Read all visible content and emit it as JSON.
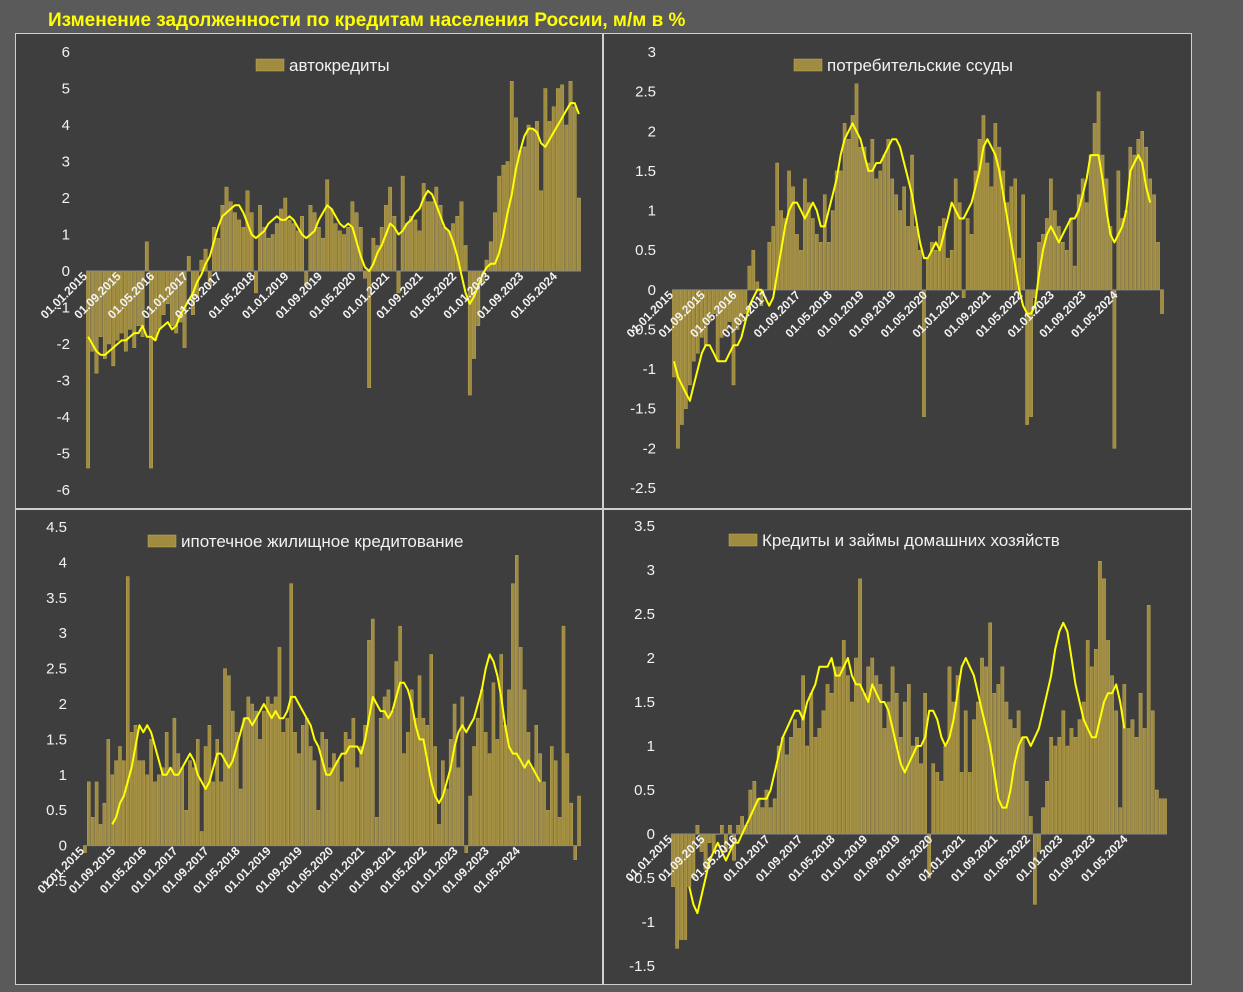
{
  "title": "Изменение задолженности по кредитам населения России, м/м в %",
  "colors": {
    "background": "#5a5a5a",
    "plot_area": "#3e3e3e",
    "bars": "#a08c40",
    "bar_stroke": "#c6b05a",
    "trend_line": "#ffff00",
    "text": "#f2f2f2",
    "panel_border": "#cfcfcf"
  },
  "chart_data": [
    {
      "type": "bar",
      "legend": "автокредиты",
      "legend_position": "top-center",
      "ylim": [
        -6,
        6
      ],
      "yticks": [
        -6,
        -5,
        -4,
        -3,
        -2,
        -1,
        0,
        1,
        2,
        3,
        4,
        5,
        6
      ],
      "x_tick_labels": [
        "01.01.2015",
        "01.09.2015",
        "01.05.2016",
        "01.01.2017",
        "01.09.2017",
        "01.05.2018",
        "01.01.2019",
        "01.09.2019",
        "01.05.2020",
        "01.01.2021",
        "01.09.2021",
        "01.05.2022",
        "01.01.2023",
        "01.09.2023",
        "01.05.2024"
      ],
      "start_month": "2015-01",
      "values": [
        -5.4,
        -2.2,
        -2.8,
        -1.8,
        -2.4,
        -2.0,
        -2.6,
        -1.9,
        -1.7,
        -2.2,
        -1.6,
        -2.1,
        -1.5,
        -1.8,
        0.8,
        -5.4,
        -1.9,
        -1.6,
        -1.2,
        -0.9,
        -1.5,
        -1.7,
        -1.4,
        -2.1,
        0.4,
        -1.2,
        -0.7,
        0.3,
        0.6,
        -0.4,
        1.2,
        0.9,
        1.8,
        2.3,
        1.9,
        1.6,
        1.4,
        1.2,
        2.2,
        1.6,
        -0.6,
        1.8,
        1.2,
        0.9,
        1.0,
        1.3,
        1.7,
        2.0,
        1.4,
        1.3,
        1.1,
        1.5,
        -0.4,
        1.8,
        1.6,
        1.2,
        0.9,
        2.5,
        1.7,
        1.3,
        1.1,
        1.0,
        1.2,
        1.9,
        1.6,
        1.2,
        -0.2,
        -3.2,
        0.9,
        0.7,
        1.2,
        1.8,
        2.3,
        1.5,
        -0.6,
        2.6,
        1.3,
        1.5,
        1.4,
        1.1,
        2.4,
        1.9,
        1.9,
        2.3,
        1.8,
        1.2,
        1.1,
        1.3,
        1.5,
        1.9,
        0.7,
        -3.4,
        -2.4,
        -1.5,
        -0.3,
        0.3,
        0.8,
        1.6,
        2.6,
        2.9,
        3.0,
        5.2,
        4.2,
        3.3,
        3.4,
        4.0,
        3.9,
        4.1,
        2.2,
        5.0,
        4.1,
        4.5,
        5.0,
        5.1,
        4.0,
        5.2,
        4.5,
        2.0
      ],
      "trend": [
        -1.8,
        -2.0,
        -2.2,
        -2.3,
        -2.3,
        -2.2,
        -2.1,
        -2.0,
        -1.9,
        -1.9,
        -1.8,
        -1.7,
        -1.7,
        -1.5,
        -1.8,
        -1.8,
        -1.9,
        -1.6,
        -1.5,
        -1.4,
        -1.6,
        -1.5,
        -1.2,
        -1.0,
        -0.8,
        -0.6,
        -0.3,
        -0.1,
        0.2,
        0.4,
        0.8,
        1.2,
        1.5,
        1.6,
        1.7,
        1.8,
        1.8,
        1.6,
        1.3,
        1.0,
        0.9,
        1.0,
        1.1,
        1.3,
        1.4,
        1.5,
        1.4,
        1.4,
        1.5,
        1.4,
        1.2,
        1.0,
        0.9,
        1.0,
        1.1,
        1.4,
        1.6,
        1.8,
        1.7,
        1.5,
        1.3,
        1.2,
        1.3,
        1.2,
        0.8,
        0.4,
        0.1,
        0.0,
        0.2,
        0.5,
        0.7,
        1.0,
        1.3,
        1.2,
        1.0,
        1.1,
        1.3,
        1.4,
        1.6,
        1.7,
        2.0,
        2.2,
        2.1,
        1.8,
        1.5,
        1.2,
        1.1,
        0.8,
        0.4,
        -0.1,
        -0.6,
        -0.9,
        -0.7,
        -0.4,
        -0.1,
        0.1,
        0.2,
        0.2,
        0.5,
        1.0,
        1.6,
        2.1,
        2.8,
        3.3,
        3.7,
        3.9,
        3.9,
        3.8,
        3.5,
        3.4,
        3.6,
        3.8,
        4.0,
        4.2,
        4.4,
        4.6,
        4.6,
        4.3
      ]
    },
    {
      "type": "bar",
      "legend": "потребительские ссуды",
      "legend_position": "top-center",
      "ylim": [
        -2.5,
        3
      ],
      "yticks": [
        -2.5,
        -2,
        -1.5,
        -1,
        -0.5,
        0,
        0.5,
        1,
        1.5,
        2,
        2.5,
        3
      ],
      "x_tick_labels": [
        "01.01.2015",
        "01.09.2015",
        "01.05.2016",
        "01.01.2017",
        "01.09.2017",
        "01.05.2018",
        "01.01.2019",
        "01.09.2019",
        "01.05.2020",
        "01.01.2021",
        "01.09.2021",
        "01.05.2022",
        "01.01.2023",
        "01.09.2023",
        "01.05.2024"
      ],
      "start_month": "2015-01",
      "values": [
        -1.1,
        -2.0,
        -1.7,
        -1.5,
        -1.2,
        -0.9,
        -0.8,
        -0.6,
        -0.7,
        -0.4,
        -0.3,
        -0.9,
        -0.6,
        -0.5,
        -0.4,
        -1.2,
        -0.5,
        -0.4,
        -0.3,
        0.3,
        0.5,
        0.1,
        -0.2,
        0.0,
        0.6,
        0.8,
        1.6,
        1.0,
        0.9,
        1.5,
        1.3,
        0.7,
        0.5,
        1.4,
        1.1,
        0.9,
        0.7,
        0.6,
        1.2,
        0.6,
        1.0,
        1.5,
        1.5,
        2.1,
        1.9,
        2.2,
        2.6,
        1.8,
        1.8,
        1.6,
        1.9,
        1.4,
        1.5,
        1.7,
        1.9,
        1.4,
        1.2,
        1.0,
        1.3,
        0.8,
        1.7,
        0.8,
        0.5,
        -1.6,
        0.4,
        0.6,
        0.5,
        0.8,
        0.9,
        0.4,
        0.5,
        1.4,
        1.1,
        -0.1,
        0.9,
        0.7,
        1.5,
        1.9,
        2.2,
        1.6,
        1.3,
        2.1,
        1.8,
        1.5,
        1.1,
        1.3,
        1.4,
        0.4,
        1.2,
        -1.7,
        -1.6,
        -0.1,
        0.6,
        0.7,
        0.9,
        1.4,
        1.0,
        0.8,
        0.6,
        0.5,
        0.9,
        0.3,
        1.2,
        1.4,
        1.1,
        1.7,
        2.1,
        2.5,
        1.7,
        1.4,
        0.8,
        -2.0,
        1.5,
        0.9,
        1.0,
        1.8,
        1.7,
        1.9,
        2.0,
        1.8,
        1.4,
        1.2,
        0.6,
        -0.3
      ],
      "trend": [
        -0.9,
        -1.1,
        -1.2,
        -1.3,
        -1.4,
        -1.2,
        -1.0,
        -0.8,
        -0.7,
        -0.7,
        -0.8,
        -0.9,
        -0.9,
        -0.9,
        -0.8,
        -0.7,
        -0.7,
        -0.6,
        -0.4,
        -0.2,
        -0.1,
        0.0,
        0.0,
        -0.1,
        -0.2,
        -0.1,
        0.2,
        0.5,
        0.8,
        1.0,
        1.1,
        1.1,
        1.0,
        0.9,
        1.0,
        1.1,
        1.0,
        0.8,
        0.8,
        1.0,
        1.2,
        1.4,
        1.7,
        1.9,
        2.0,
        2.1,
        2.0,
        1.9,
        1.7,
        1.5,
        1.5,
        1.6,
        1.6,
        1.7,
        1.8,
        1.9,
        1.9,
        1.8,
        1.6,
        1.4,
        1.2,
        0.9,
        0.6,
        0.4,
        0.4,
        0.5,
        0.6,
        0.5,
        0.7,
        0.9,
        1.1,
        1.0,
        0.9,
        0.9,
        1.0,
        1.1,
        1.3,
        1.5,
        1.8,
        1.9,
        1.8,
        1.7,
        1.5,
        1.2,
        0.9,
        0.6,
        0.3,
        0.0,
        -0.2,
        -0.3,
        -0.3,
        -0.2,
        0.2,
        0.5,
        0.7,
        0.8,
        0.7,
        0.6,
        0.7,
        0.8,
        0.9,
        0.9,
        1.0,
        1.2,
        1.4,
        1.7,
        1.7,
        1.7,
        1.4,
        1.0,
        0.7,
        0.6,
        0.7,
        0.8,
        1.0,
        1.5,
        1.6,
        1.7,
        1.6,
        1.3,
        1.1
      ],
      "trend_offset": 0
    },
    {
      "type": "bar",
      "legend": "ипотечное жилищное кредитование",
      "legend_position": "top-center",
      "ylim": [
        -0.5,
        4.5
      ],
      "yticks": [
        -0.5,
        0,
        0.5,
        1,
        1.5,
        2,
        2.5,
        3,
        3.5,
        4,
        4.5
      ],
      "x_tick_labels": [
        "01.01.2015",
        "01.09.2015",
        "01.05.2016",
        "01.01.2017",
        "01.09.2017",
        "01.05.2018",
        "01.01.2019",
        "01.09.2019",
        "01.05.2020",
        "01.01.2021",
        "01.09.2021",
        "01.05.2022",
        "01.01.2023",
        "01.09.2023",
        "01.05.2024"
      ],
      "start_month": "2015-01",
      "values": [
        -0.1,
        0.9,
        0.4,
        0.9,
        0.3,
        0.6,
        1.5,
        1.0,
        1.2,
        1.4,
        1.2,
        3.8,
        1.6,
        1.7,
        1.2,
        1.2,
        1.0,
        1.5,
        0.9,
        1.0,
        1.1,
        1.6,
        1.1,
        1.8,
        1.3,
        1.1,
        0.5,
        1.2,
        1.1,
        1.5,
        0.2,
        1.4,
        1.7,
        0.9,
        1.5,
        0.9,
        2.5,
        2.4,
        1.9,
        1.6,
        0.8,
        1.8,
        2.1,
        2.0,
        1.9,
        1.5,
        1.9,
        2.1,
        2.0,
        2.1,
        2.8,
        1.6,
        1.8,
        3.7,
        1.6,
        1.3,
        1.7,
        1.8,
        1.4,
        1.2,
        0.5,
        1.6,
        1.5,
        1.1,
        1.3,
        1.2,
        0.9,
        1.6,
        1.5,
        1.8,
        1.1,
        1.4,
        1.7,
        2.9,
        3.2,
        0.4,
        1.8,
        2.1,
        2.2,
        1.9,
        2.6,
        3.1,
        1.3,
        1.6,
        2.2,
        1.8,
        2.4,
        1.8,
        1.7,
        2.7,
        1.4,
        0.3,
        1.2,
        0.8,
        1.5,
        2.0,
        1.1,
        2.1,
        -0.1,
        0.7,
        1.4,
        1.8,
        2.2,
        1.6,
        1.3,
        2.3,
        1.5,
        2.7,
        1.7,
        2.2,
        3.7,
        4.1,
        2.8,
        2.2,
        1.6,
        1.1,
        1.7,
        1.3,
        0.9,
        0.5,
        1.4,
        1.2,
        0.4,
        3.1,
        1.3,
        0.6,
        -0.2,
        0.7
      ],
      "trend_start": 7,
      "trend": [
        0.3,
        0.4,
        0.6,
        0.7,
        0.9,
        1.1,
        1.4,
        1.7,
        1.6,
        1.7,
        1.6,
        1.4,
        1.2,
        1.0,
        1.0,
        1.1,
        1.0,
        1.0,
        1.1,
        1.2,
        1.3,
        1.2,
        1.0,
        0.9,
        0.8,
        0.9,
        1.1,
        1.3,
        1.3,
        1.2,
        1.1,
        1.2,
        1.4,
        1.6,
        1.8,
        1.8,
        1.7,
        1.8,
        1.9,
        2.0,
        1.9,
        1.8,
        1.9,
        1.8,
        1.8,
        1.9,
        2.1,
        2.1,
        2.0,
        1.9,
        1.8,
        1.7,
        1.5,
        1.4,
        1.2,
        1.0,
        1.0,
        1.1,
        1.2,
        1.3,
        1.3,
        1.4,
        1.4,
        1.4,
        1.3,
        1.5,
        1.8,
        2.1,
        2.0,
        1.9,
        1.9,
        1.8,
        1.9,
        2.1,
        2.3,
        2.3,
        2.2,
        2.0,
        1.7,
        1.5,
        1.5,
        1.2,
        0.9,
        0.7,
        0.6,
        0.7,
        0.9,
        1.1,
        1.4,
        1.6,
        1.7,
        1.6,
        1.7,
        1.8,
        2.0,
        2.2,
        2.5,
        2.7,
        2.6,
        2.4,
        2.1,
        1.7,
        1.4,
        1.3,
        1.3,
        1.2,
        1.1,
        1.2,
        1.1,
        1.0,
        0.9
      ]
    },
    {
      "type": "bar",
      "legend": "Кредиты и займы домашних хозяйств",
      "legend_position": "top-center",
      "ylim": [
        -1.5,
        3.5
      ],
      "yticks": [
        -1.5,
        -1,
        -0.5,
        0,
        0.5,
        1,
        1.5,
        2,
        2.5,
        3,
        3.5
      ],
      "x_tick_labels": [
        "01.01.2015",
        "01.09.2015",
        "01.05.2016",
        "01.01.2017",
        "01.09.2017",
        "01.05.2018",
        "01.01.2019",
        "01.09.2019",
        "01.05.2020",
        "01.01.2021",
        "01.09.2021",
        "01.05.2022",
        "01.01.2023",
        "01.09.2023",
        "01.05.2024"
      ],
      "start_month": "2015-01",
      "values": [
        -0.6,
        -1.3,
        -1.2,
        -1.2,
        -0.6,
        -0.5,
        0.1,
        -0.2,
        -0.4,
        -0.1,
        -0.2,
        0.0,
        0.1,
        -0.2,
        0.1,
        -0.3,
        0.1,
        0.2,
        0.1,
        0.5,
        0.6,
        0.4,
        0.3,
        0.5,
        0.3,
        0.4,
        1.0,
        1.1,
        0.9,
        1.1,
        1.3,
        1.2,
        1.8,
        1.0,
        1.6,
        1.1,
        1.2,
        1.4,
        1.7,
        1.6,
        1.9,
        1.9,
        2.2,
        1.8,
        1.5,
        2.0,
        2.9,
        1.6,
        1.9,
        2.0,
        1.8,
        1.7,
        1.2,
        1.5,
        1.9,
        1.6,
        1.1,
        1.5,
        1.7,
        1.0,
        1.1,
        0.8,
        1.6,
        -0.5,
        0.8,
        0.7,
        0.6,
        1.0,
        1.9,
        1.5,
        1.8,
        0.7,
        1.4,
        0.7,
        1.3,
        1.5,
        2.0,
        1.9,
        2.4,
        1.6,
        1.7,
        1.9,
        1.5,
        1.3,
        1.2,
        1.4,
        1.1,
        0.6,
        0.2,
        -0.8,
        -0.2,
        0.3,
        0.6,
        1.1,
        1.0,
        1.1,
        1.4,
        1.0,
        1.2,
        1.1,
        1.3,
        1.5,
        2.2,
        1.9,
        2.1,
        3.1,
        2.9,
        2.2,
        1.8,
        1.4,
        0.3,
        1.7,
        1.2,
        1.3,
        1.1,
        1.6,
        1.2,
        2.6,
        1.4,
        0.5,
        0.4,
        0.4
      ],
      "trend_start": 4,
      "trend": [
        -0.6,
        -0.8,
        -0.9,
        -0.7,
        -0.5,
        -0.3,
        -0.2,
        -0.1,
        -0.2,
        -0.3,
        -0.2,
        -0.1,
        -0.1,
        0.0,
        0.1,
        0.2,
        0.3,
        0.4,
        0.4,
        0.4,
        0.5,
        0.7,
        0.9,
        1.1,
        1.2,
        1.3,
        1.4,
        1.4,
        1.3,
        1.5,
        1.6,
        1.7,
        1.9,
        1.9,
        1.9,
        2.0,
        1.8,
        1.8,
        1.9,
        2.0,
        1.8,
        1.7,
        1.7,
        1.6,
        1.5,
        1.7,
        1.6,
        1.5,
        1.5,
        1.4,
        1.2,
        1.0,
        0.8,
        0.7,
        0.8,
        0.9,
        1.0,
        1.0,
        1.1,
        1.4,
        1.4,
        1.3,
        1.1,
        1.0,
        1.1,
        1.3,
        1.6,
        1.9,
        2.0,
        1.9,
        1.8,
        1.6,
        1.4,
        1.2,
        1.0,
        0.7,
        0.4,
        0.3,
        0.3,
        0.5,
        0.8,
        1.0,
        1.1,
        1.1,
        1.0,
        1.1,
        1.2,
        1.4,
        1.6,
        1.8,
        2.1,
        2.3,
        2.4,
        2.3,
        2.0,
        1.7,
        1.5,
        1.3,
        1.2,
        1.1,
        1.1,
        1.3,
        1.5,
        1.6,
        1.6,
        1.7,
        1.5,
        1.2
      ]
    }
  ]
}
